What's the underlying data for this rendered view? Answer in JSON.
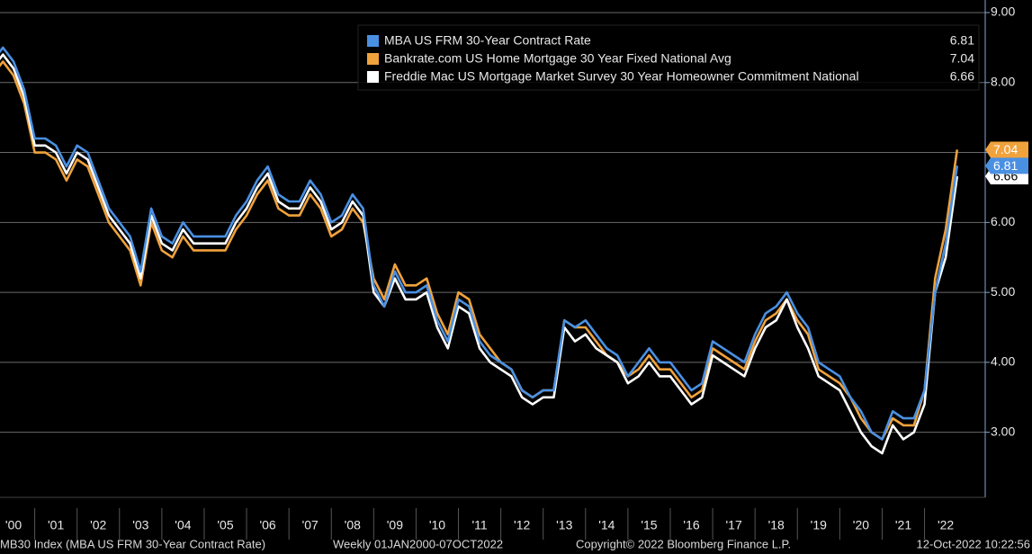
{
  "chart_data": {
    "type": "line",
    "legend": "top-right",
    "grid": true,
    "ylim": [
      2.07,
      9.18
    ],
    "yticks": [
      {
        "value": 3,
        "label": "3.00"
      },
      {
        "value": 4,
        "label": "4.00"
      },
      {
        "value": 5,
        "label": "5.00"
      },
      {
        "value": 6,
        "label": "6.00"
      },
      {
        "value": 7,
        "label": "7.00"
      },
      {
        "value": 8,
        "label": "8.00"
      },
      {
        "value": 9,
        "label": "9.00"
      }
    ],
    "xlim": [
      2000,
      2023.39
    ],
    "xticks": [
      {
        "value": 2000,
        "label": "'00"
      },
      {
        "value": 2001,
        "label": "'01"
      },
      {
        "value": 2002,
        "label": "'02"
      },
      {
        "value": 2003,
        "label": "'03"
      },
      {
        "value": 2004,
        "label": "'04"
      },
      {
        "value": 2005,
        "label": "'05"
      },
      {
        "value": 2006,
        "label": "'06"
      },
      {
        "value": 2007,
        "label": "'07"
      },
      {
        "value": 2008,
        "label": "'08"
      },
      {
        "value": 2009,
        "label": "'09"
      },
      {
        "value": 2010,
        "label": "'10"
      },
      {
        "value": 2011,
        "label": "'11"
      },
      {
        "value": 2012,
        "label": "'12"
      },
      {
        "value": 2013,
        "label": "'13"
      },
      {
        "value": 2014,
        "label": "'14"
      },
      {
        "value": 2015,
        "label": "'15"
      },
      {
        "value": 2016,
        "label": "'16"
      },
      {
        "value": 2017,
        "label": "'17"
      },
      {
        "value": 2018,
        "label": "'18"
      },
      {
        "value": 2019,
        "label": "'19"
      },
      {
        "value": 2020,
        "label": "'20"
      },
      {
        "value": 2021,
        "label": "'21"
      },
      {
        "value": 2022,
        "label": "'22"
      }
    ],
    "x": [
      2000,
      2000.25,
      2000.5,
      2000.75,
      2001,
      2001.25,
      2001.5,
      2001.75,
      2002,
      2002.25,
      2002.5,
      2002.75,
      2003,
      2003.25,
      2003.5,
      2003.75,
      2004,
      2004.25,
      2004.5,
      2004.75,
      2005,
      2005.25,
      2005.5,
      2005.75,
      2006,
      2006.25,
      2006.5,
      2006.75,
      2007,
      2007.25,
      2007.5,
      2007.75,
      2008,
      2008.25,
      2008.5,
      2008.75,
      2009,
      2009.25,
      2009.5,
      2009.75,
      2010,
      2010.25,
      2010.5,
      2010.75,
      2011,
      2011.25,
      2011.5,
      2011.75,
      2012,
      2012.25,
      2012.5,
      2012.75,
      2013,
      2013.25,
      2013.5,
      2013.75,
      2014,
      2014.25,
      2014.5,
      2014.75,
      2015,
      2015.25,
      2015.5,
      2015.75,
      2016,
      2016.25,
      2016.5,
      2016.75,
      2017,
      2017.25,
      2017.5,
      2017.75,
      2018,
      2018.25,
      2018.5,
      2018.75,
      2019,
      2019.25,
      2019.5,
      2019.75,
      2020,
      2020.25,
      2020.5,
      2020.75,
      2021,
      2021.25,
      2021.5,
      2021.75,
      2022,
      2022.25,
      2022.5,
      2022.77
    ],
    "series": [
      {
        "name": "MBA US FRM 30-Year Contract Rate",
        "color": "#4a90e2",
        "last": 6.81,
        "values": [
          8.3,
          8.5,
          8.3,
          7.9,
          7.2,
          7.2,
          7.1,
          6.8,
          7.1,
          7.0,
          6.6,
          6.2,
          6.0,
          5.8,
          5.3,
          6.2,
          5.8,
          5.7,
          6.0,
          5.8,
          5.8,
          5.8,
          5.8,
          6.1,
          6.3,
          6.6,
          6.8,
          6.4,
          6.3,
          6.3,
          6.6,
          6.4,
          6.0,
          6.1,
          6.4,
          6.2,
          5.1,
          4.8,
          5.3,
          5.0,
          5.0,
          5.1,
          4.6,
          4.3,
          4.9,
          4.8,
          4.3,
          4.1,
          4.0,
          3.9,
          3.6,
          3.5,
          3.6,
          3.6,
          4.6,
          4.5,
          4.6,
          4.4,
          4.2,
          4.1,
          3.8,
          4.0,
          4.2,
          4.0,
          4.0,
          3.8,
          3.6,
          3.7,
          4.3,
          4.2,
          4.1,
          4.0,
          4.4,
          4.7,
          4.8,
          5.0,
          4.7,
          4.5,
          4.0,
          3.9,
          3.8,
          3.5,
          3.3,
          3.0,
          2.9,
          3.3,
          3.2,
          3.2,
          3.6,
          5.0,
          5.7,
          6.81
        ]
      },
      {
        "name": "Bankrate.com US Home Mortgage 30 Year Fixed National Avg",
        "color": "#f0a23c",
        "last": 7.04,
        "values": [
          8.1,
          8.3,
          8.1,
          7.7,
          7.0,
          7.0,
          6.9,
          6.6,
          6.9,
          6.8,
          6.4,
          6.0,
          5.8,
          5.6,
          5.1,
          6.0,
          5.6,
          5.5,
          5.8,
          5.6,
          5.6,
          5.6,
          5.6,
          5.9,
          6.1,
          6.4,
          6.6,
          6.2,
          6.1,
          6.1,
          6.4,
          6.2,
          5.8,
          5.9,
          6.2,
          6.0,
          5.2,
          4.9,
          5.4,
          5.1,
          5.1,
          5.2,
          4.7,
          4.4,
          5.0,
          4.9,
          4.4,
          4.2,
          4.0,
          3.9,
          3.6,
          3.5,
          3.6,
          3.6,
          4.6,
          4.5,
          4.5,
          4.3,
          4.1,
          4.0,
          3.8,
          3.9,
          4.1,
          3.9,
          3.9,
          3.7,
          3.5,
          3.6,
          4.2,
          4.1,
          4.0,
          3.9,
          4.3,
          4.6,
          4.7,
          4.9,
          4.6,
          4.4,
          3.9,
          3.8,
          3.7,
          3.5,
          3.2,
          3.0,
          2.9,
          3.2,
          3.1,
          3.1,
          3.6,
          5.2,
          5.9,
          7.04
        ]
      },
      {
        "name": "Freddie Mac US Mortgage Market Survey 30 Year Homeowner Commitment National",
        "color": "#ffffff",
        "last": 6.66,
        "values": [
          8.2,
          8.4,
          8.2,
          7.8,
          7.1,
          7.1,
          7.0,
          6.7,
          7.0,
          6.9,
          6.5,
          6.1,
          5.9,
          5.7,
          5.2,
          6.1,
          5.7,
          5.6,
          5.9,
          5.7,
          5.7,
          5.7,
          5.7,
          6.0,
          6.2,
          6.5,
          6.7,
          6.3,
          6.2,
          6.2,
          6.5,
          6.3,
          5.9,
          6.0,
          6.3,
          6.1,
          5.0,
          4.8,
          5.2,
          4.9,
          4.9,
          5.0,
          4.5,
          4.2,
          4.8,
          4.7,
          4.2,
          4.0,
          3.9,
          3.8,
          3.5,
          3.4,
          3.5,
          3.5,
          4.5,
          4.3,
          4.4,
          4.2,
          4.1,
          4.0,
          3.7,
          3.8,
          4.0,
          3.8,
          3.8,
          3.6,
          3.4,
          3.5,
          4.1,
          4.0,
          3.9,
          3.8,
          4.2,
          4.5,
          4.6,
          4.9,
          4.5,
          4.2,
          3.8,
          3.7,
          3.6,
          3.3,
          3.0,
          2.8,
          2.7,
          3.1,
          2.9,
          3.0,
          3.4,
          5.0,
          5.5,
          6.66
        ]
      }
    ],
    "footer_left": "MB30 Index (MBA US FRM 30-Year Contract Rate)",
    "footer_range": "Weekly 01JAN2000-07OCT2022",
    "footer_copyright": "Copyright© 2022 Bloomberg Finance L.P.",
    "footer_timestamp": "12-Oct-2022 10:22:56"
  }
}
